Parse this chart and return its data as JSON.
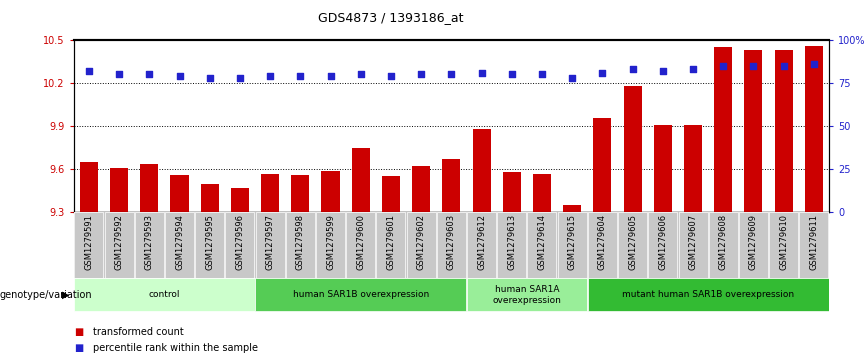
{
  "title": "GDS4873 / 1393186_at",
  "samples": [
    "GSM1279591",
    "GSM1279592",
    "GSM1279593",
    "GSM1279594",
    "GSM1279595",
    "GSM1279596",
    "GSM1279597",
    "GSM1279598",
    "GSM1279599",
    "GSM1279600",
    "GSM1279601",
    "GSM1279602",
    "GSM1279603",
    "GSM1279612",
    "GSM1279613",
    "GSM1279614",
    "GSM1279615",
    "GSM1279604",
    "GSM1279605",
    "GSM1279606",
    "GSM1279607",
    "GSM1279608",
    "GSM1279609",
    "GSM1279610",
    "GSM1279611"
  ],
  "bar_values": [
    9.65,
    9.61,
    9.64,
    9.56,
    9.5,
    9.47,
    9.57,
    9.56,
    9.59,
    9.75,
    9.55,
    9.62,
    9.67,
    9.88,
    9.58,
    9.57,
    9.35,
    9.96,
    10.18,
    9.91,
    9.91,
    10.45,
    10.43,
    10.43,
    10.46
  ],
  "percentile_values": [
    82,
    80,
    80,
    79,
    78,
    78,
    79,
    79,
    79,
    80,
    79,
    80,
    80,
    81,
    80,
    80,
    78,
    81,
    83,
    82,
    83,
    85,
    85,
    85,
    86
  ],
  "ylim_left": [
    9.3,
    10.5
  ],
  "ylim_right": [
    0,
    100
  ],
  "yticks_left": [
    9.3,
    9.6,
    9.9,
    10.2,
    10.5
  ],
  "yticks_right": [
    0,
    25,
    50,
    75,
    100
  ],
  "ytick_labels_right": [
    "0",
    "25",
    "50",
    "75",
    "100%"
  ],
  "bar_color": "#cc0000",
  "dot_color": "#2222cc",
  "groups": [
    {
      "label": "control",
      "start": 0,
      "end": 6,
      "color": "#ccffcc"
    },
    {
      "label": "human SAR1B overexpression",
      "start": 6,
      "end": 13,
      "color": "#55cc55"
    },
    {
      "label": "human SAR1A\noverexpression",
      "start": 13,
      "end": 17,
      "color": "#99ee99"
    },
    {
      "label": "mutant human SAR1B overexpression",
      "start": 17,
      "end": 25,
      "color": "#33bb33"
    }
  ],
  "group_row_label": "genotype/variation",
  "legend_bar_label": "transformed count",
  "legend_dot_label": "percentile rank within the sample",
  "background_color": "#ffffff",
  "tick_bg_color": "#c8c8c8"
}
